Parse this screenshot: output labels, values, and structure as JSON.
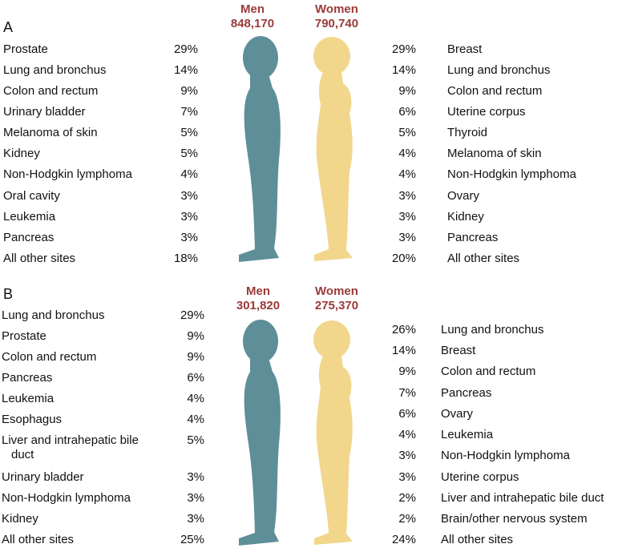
{
  "panels": [
    {
      "label": "A",
      "men": {
        "title": "Men",
        "total": "848,170",
        "rows": [
          {
            "site": "Prostate",
            "pct": "29%"
          },
          {
            "site": "Lung and bronchus",
            "pct": "14%"
          },
          {
            "site": "Colon and rectum",
            "pct": "9%"
          },
          {
            "site": "Urinary bladder",
            "pct": "7%"
          },
          {
            "site": "Melanoma of skin",
            "pct": "5%"
          },
          {
            "site": "Kidney",
            "pct": "5%"
          },
          {
            "site": "Non-Hodgkin lymphoma",
            "pct": "4%"
          },
          {
            "site": "Oral cavity",
            "pct": "3%"
          },
          {
            "site": "Leukemia",
            "pct": "3%"
          },
          {
            "site": "Pancreas",
            "pct": "3%"
          },
          {
            "site": "All other sites",
            "pct": "18%"
          }
        ]
      },
      "women": {
        "title": "Women",
        "total": "790,740",
        "rows": [
          {
            "site": "Breast",
            "pct": "29%"
          },
          {
            "site": "Lung and bronchus",
            "pct": "14%"
          },
          {
            "site": "Colon and rectum",
            "pct": "9%"
          },
          {
            "site": "Uterine corpus",
            "pct": "6%"
          },
          {
            "site": "Thyroid",
            "pct": "5%"
          },
          {
            "site": "Melanoma of skin",
            "pct": "4%"
          },
          {
            "site": "Non-Hodgkin lymphoma",
            "pct": "4%"
          },
          {
            "site": "Ovary",
            "pct": "3%"
          },
          {
            "site": "Kidney",
            "pct": "3%"
          },
          {
            "site": "Pancreas",
            "pct": "3%"
          },
          {
            "site": "All other sites",
            "pct": "20%"
          }
        ]
      }
    },
    {
      "label": "B",
      "men": {
        "title": "Men",
        "total": "301,820",
        "rows": [
          {
            "site": "Lung and bronchus",
            "pct": "29%"
          },
          {
            "site": "Prostate",
            "pct": "9%"
          },
          {
            "site": "Colon and rectum",
            "pct": "9%"
          },
          {
            "site": "Pancreas",
            "pct": "6%"
          },
          {
            "site": "Leukemia",
            "pct": "4%"
          },
          {
            "site": "Esophagus",
            "pct": "4%"
          },
          {
            "site": "Liver and intrahepatic bile duct",
            "pct": "5%"
          },
          {
            "site": "Urinary bladder",
            "pct": "3%"
          },
          {
            "site": "Non-Hodgkin lymphoma",
            "pct": "3%"
          },
          {
            "site": "Kidney",
            "pct": "3%"
          },
          {
            "site": "All other sites",
            "pct": "25%"
          }
        ]
      },
      "women": {
        "title": "Women",
        "total": "275,370",
        "rows": [
          {
            "site": "Lung and bronchus",
            "pct": "26%"
          },
          {
            "site": "Breast",
            "pct": "14%"
          },
          {
            "site": "Colon and rectum",
            "pct": "9%"
          },
          {
            "site": "Pancreas",
            "pct": "7%"
          },
          {
            "site": "Ovary",
            "pct": "6%"
          },
          {
            "site": "Leukemia",
            "pct": "4%"
          },
          {
            "site": "Non-Hodgkin lymphoma",
            "pct": "3%"
          },
          {
            "site": "Uterine corpus",
            "pct": "3%"
          },
          {
            "site": "Liver and intrahepatic bile duct",
            "pct": "2%"
          },
          {
            "site": "Brain/other nervous system",
            "pct": "2%"
          },
          {
            "site": "All other sites",
            "pct": "24%"
          }
        ]
      }
    }
  ]
}
